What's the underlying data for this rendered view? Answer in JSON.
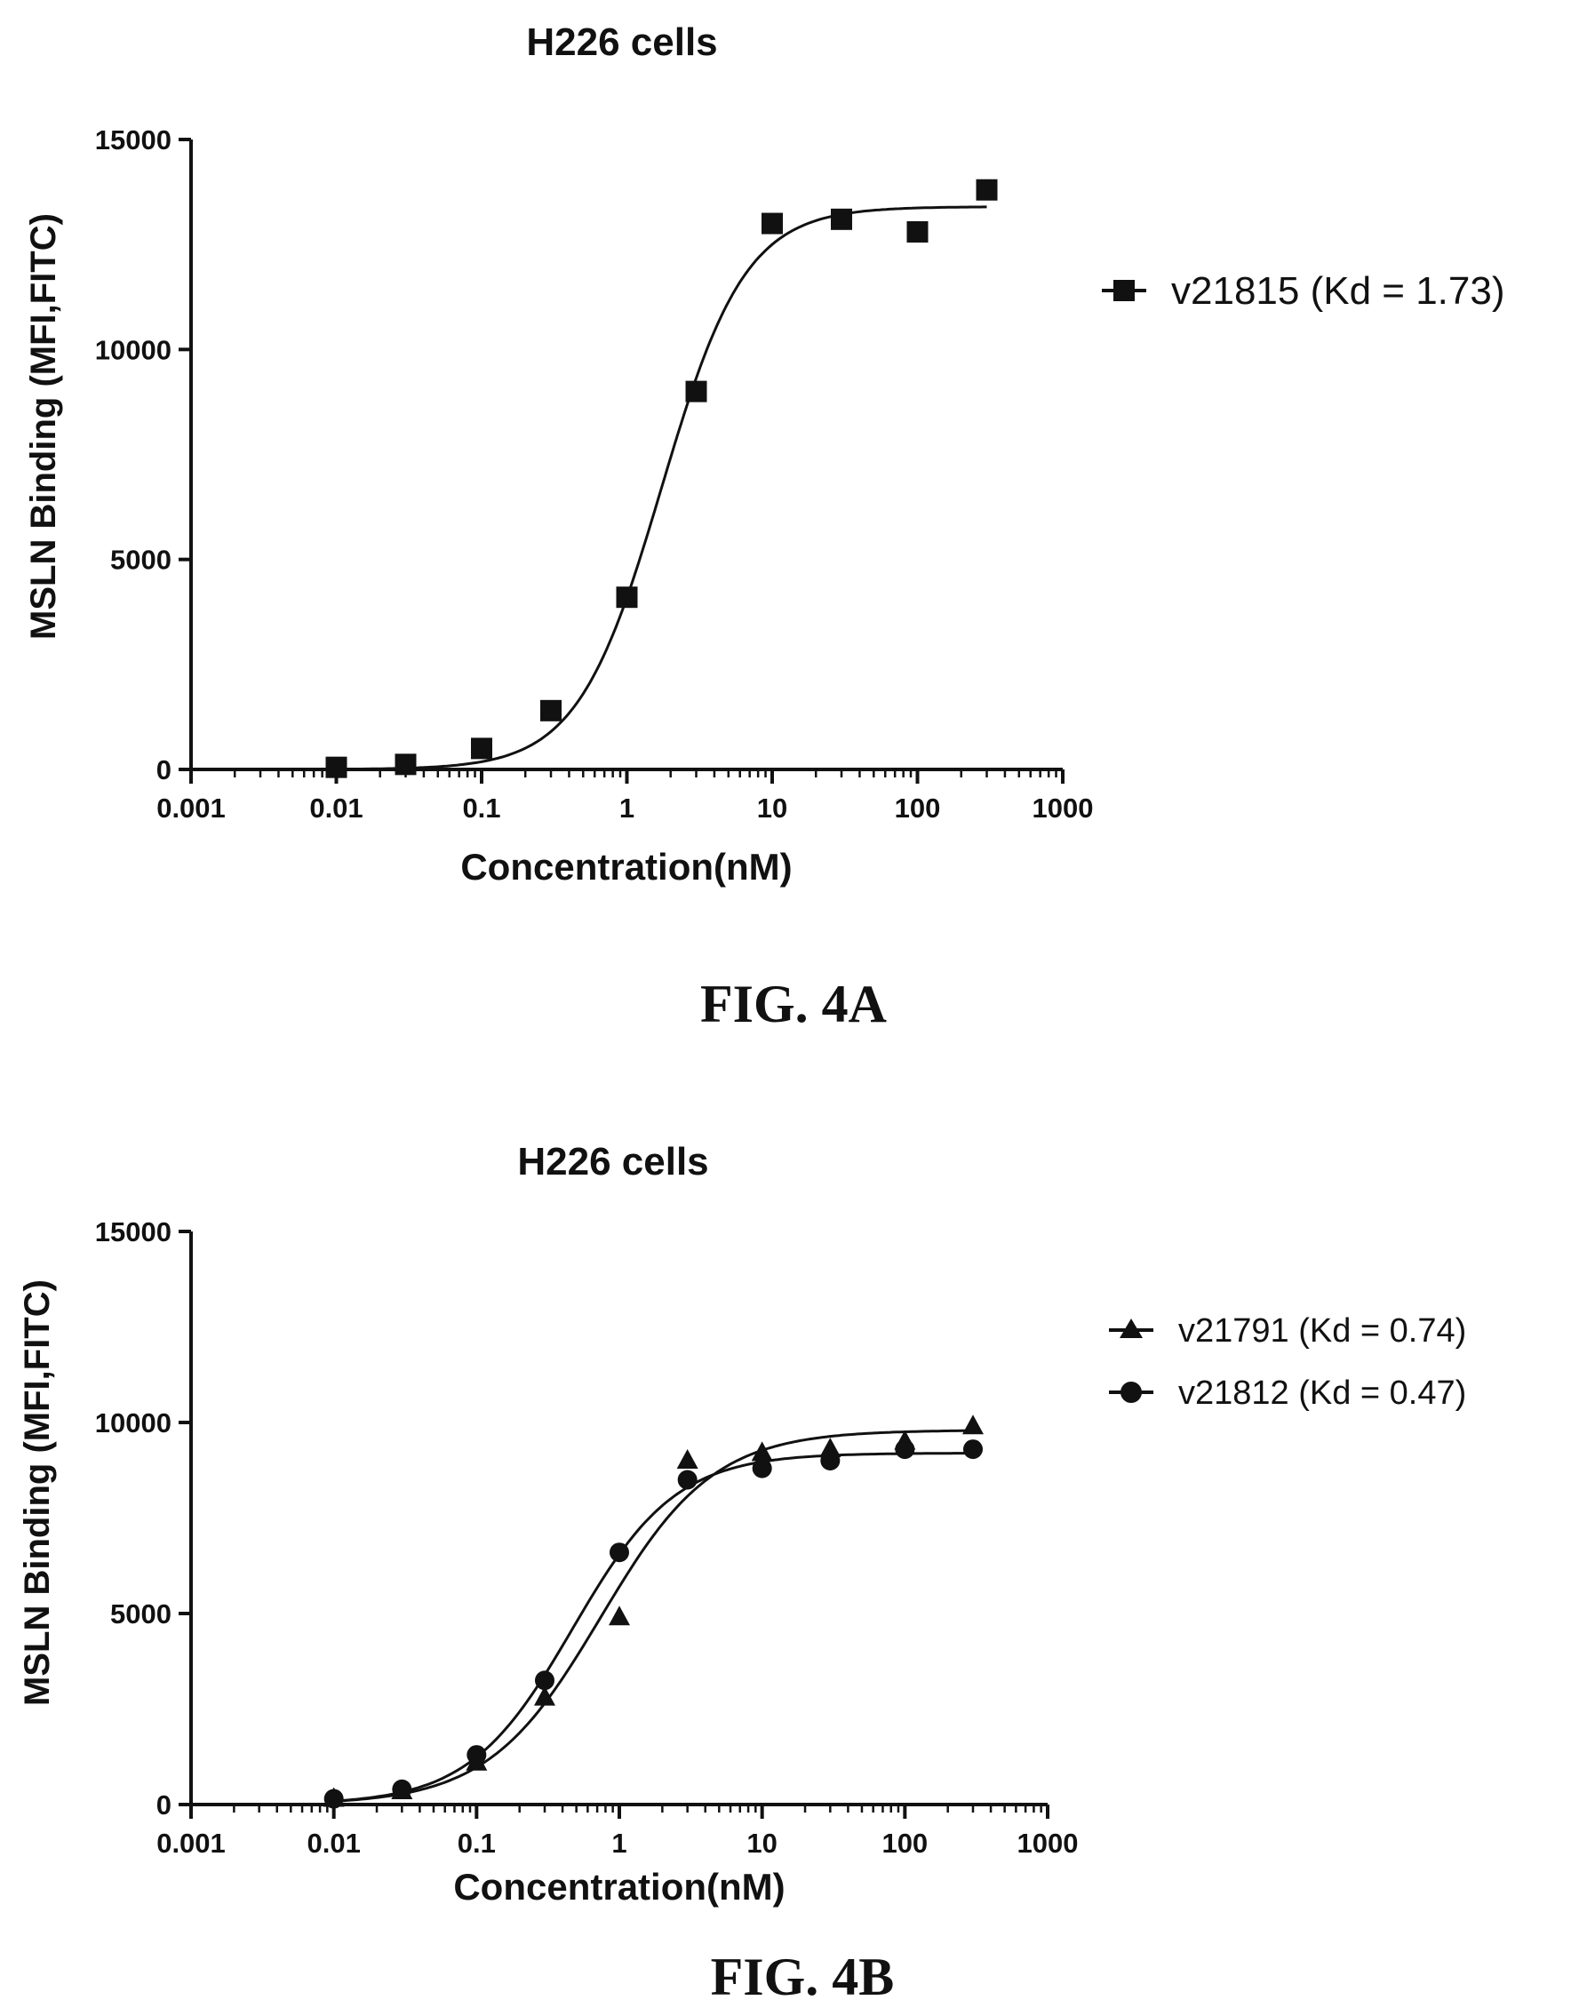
{
  "chart_data": [
    {
      "type": "scatter",
      "title": "H226 cells",
      "xlabel": "Concentration(nM)",
      "ylabel": "MSLN Binding (MFI,FITC)",
      "xscale": "log",
      "xlim": [
        0.001,
        1000
      ],
      "ylim": [
        0,
        15000
      ],
      "x_ticks": [
        "0.001",
        "0.01",
        "0.1",
        "1",
        "10",
        "100",
        "1000"
      ],
      "y_ticks": [
        "0",
        "5000",
        "10000",
        "15000"
      ],
      "legend_position": "right",
      "caption": "FIG. 4A",
      "series": [
        {
          "name": "v21815 (Kd = 1.73)",
          "marker": "square",
          "x": [
            0.01,
            0.03,
            0.1,
            0.3,
            1,
            3,
            10,
            30,
            100,
            300
          ],
          "y": [
            50,
            120,
            500,
            1400,
            4100,
            9000,
            13000,
            13100,
            12800,
            13800
          ],
          "fit": {
            "bottom": 0,
            "top": 13400,
            "ec50": 1.73,
            "hill": 1.5
          }
        }
      ]
    },
    {
      "type": "scatter",
      "title": "H226 cells",
      "xlabel": "Concentration(nM)",
      "ylabel": "MSLN Binding (MFI,FITC)",
      "xscale": "log",
      "xlim": [
        0.001,
        1000
      ],
      "ylim": [
        0,
        15000
      ],
      "x_ticks": [
        "0.001",
        "0.01",
        "0.1",
        "1",
        "10",
        "100",
        "1000"
      ],
      "y_ticks": [
        "0",
        "5000",
        "10000",
        "15000"
      ],
      "legend_position": "right",
      "caption": "FIG. 4B",
      "series": [
        {
          "name": "v21791 (Kd = 0.74)",
          "marker": "triangle",
          "x": [
            0.01,
            0.03,
            0.1,
            0.3,
            1,
            3,
            10,
            30,
            100,
            300
          ],
          "y": [
            150,
            350,
            1100,
            2800,
            4900,
            9000,
            9200,
            9300,
            9500,
            9900
          ],
          "fit": {
            "bottom": 0,
            "top": 9800,
            "ec50": 0.74,
            "hill": 1.1
          }
        },
        {
          "name": "v21812 (Kd = 0.47)",
          "marker": "circle",
          "x": [
            0.01,
            0.03,
            0.1,
            0.3,
            1,
            3,
            10,
            30,
            100,
            300
          ],
          "y": [
            150,
            400,
            1300,
            3250,
            6600,
            8500,
            8800,
            9000,
            9300,
            9300
          ],
          "fit": {
            "bottom": 0,
            "top": 9200,
            "ec50": 0.47,
            "hill": 1.2
          }
        }
      ]
    }
  ]
}
